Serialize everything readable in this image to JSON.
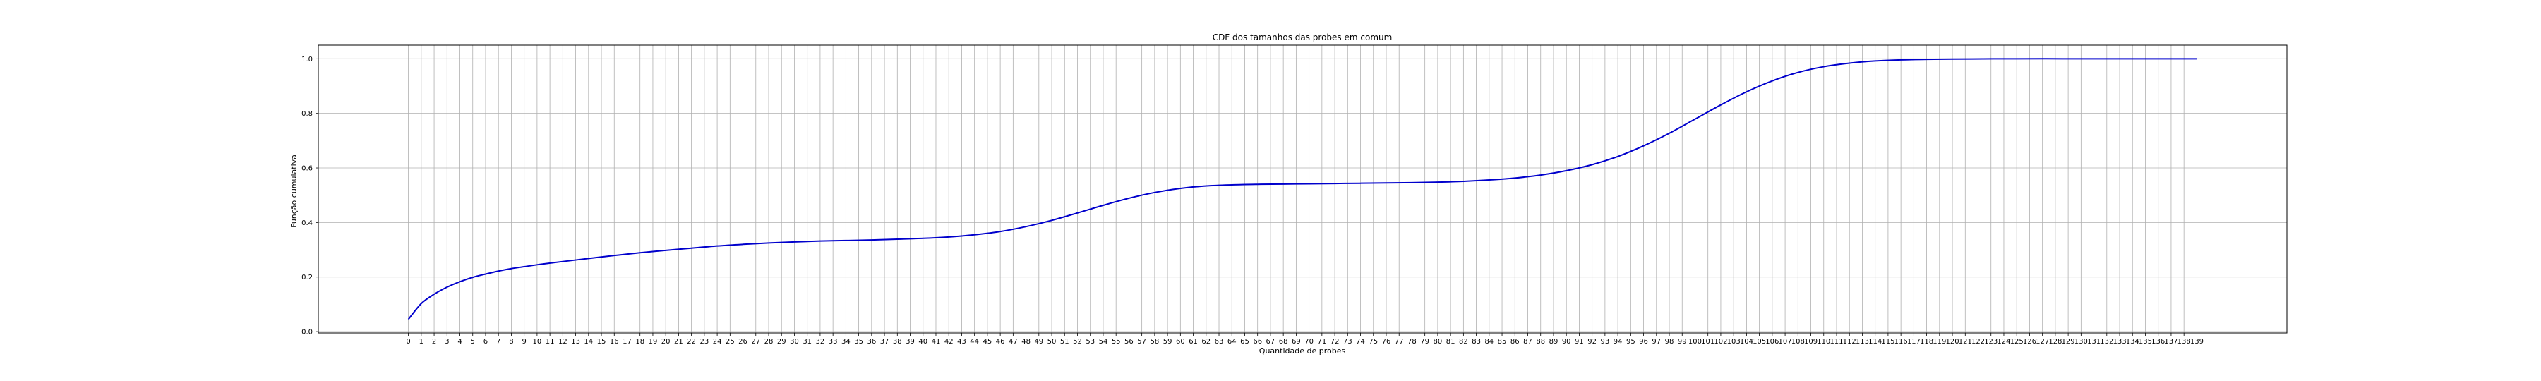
{
  "chart_data": {
    "type": "line",
    "title": "CDF dos tamanhos das probes em comum",
    "xlabel": "Quantidade de probes",
    "ylabel": "Função cumulativa",
    "xlim": [
      -7,
      146
    ],
    "ylim": [
      -0.005,
      1.05
    ],
    "xticks": [
      0,
      1,
      2,
      3,
      4,
      5,
      6,
      7,
      8,
      9,
      10,
      11,
      12,
      13,
      14,
      15,
      16,
      17,
      18,
      19,
      20,
      21,
      22,
      23,
      24,
      25,
      26,
      27,
      28,
      29,
      30,
      31,
      32,
      33,
      34,
      35,
      36,
      37,
      38,
      39,
      40,
      41,
      42,
      43,
      44,
      45,
      46,
      47,
      48,
      49,
      50,
      51,
      52,
      53,
      54,
      55,
      56,
      57,
      58,
      59,
      60,
      61,
      62,
      63,
      64,
      65,
      66,
      67,
      68,
      69,
      70,
      71,
      72,
      73,
      74,
      75,
      76,
      77,
      78,
      79,
      80,
      81,
      82,
      83,
      84,
      85,
      86,
      87,
      88,
      89,
      90,
      91,
      92,
      93,
      94,
      95,
      96,
      97,
      98,
      99,
      100,
      101,
      102,
      103,
      104,
      105,
      106,
      107,
      108,
      109,
      110,
      111,
      112,
      113,
      114,
      115,
      116,
      117,
      118,
      119,
      120,
      121,
      122,
      123,
      124,
      125,
      126,
      127,
      128,
      129,
      130,
      131,
      132,
      133,
      134,
      135,
      136,
      137,
      138,
      139
    ],
    "yticks": [
      0.0,
      0.2,
      0.4,
      0.6,
      0.8,
      1.0
    ],
    "ytick_labels": [
      "0.0",
      "0.2",
      "0.4",
      "0.6",
      "0.8",
      "1.0"
    ],
    "grid": true,
    "color": "#0000cc",
    "series": [
      {
        "x": [
          0,
          1,
          2,
          3,
          4,
          5,
          6,
          7,
          8,
          9,
          10,
          12,
          14,
          16,
          18,
          20,
          22,
          24,
          26,
          28,
          30,
          32,
          34,
          36,
          38,
          40,
          42,
          44,
          46,
          48,
          50,
          52,
          54,
          56,
          58,
          60,
          62,
          64,
          66,
          68,
          70,
          72,
          74,
          76,
          78,
          80,
          82,
          84,
          86,
          88,
          90,
          92,
          94,
          96,
          98,
          100,
          102,
          104,
          106,
          108,
          110,
          112,
          114,
          116,
          118,
          120,
          125,
          130,
          135,
          139
        ],
        "y": [
          0.045,
          0.103,
          0.137,
          0.163,
          0.183,
          0.199,
          0.211,
          0.222,
          0.231,
          0.238,
          0.245,
          0.257,
          0.268,
          0.279,
          0.289,
          0.298,
          0.306,
          0.314,
          0.32,
          0.325,
          0.329,
          0.332,
          0.334,
          0.336,
          0.339,
          0.342,
          0.347,
          0.355,
          0.367,
          0.385,
          0.408,
          0.435,
          0.463,
          0.489,
          0.51,
          0.525,
          0.534,
          0.538,
          0.54,
          0.541,
          0.542,
          0.543,
          0.544,
          0.545,
          0.546,
          0.548,
          0.551,
          0.556,
          0.563,
          0.574,
          0.59,
          0.612,
          0.642,
          0.681,
          0.727,
          0.779,
          0.831,
          0.879,
          0.919,
          0.95,
          0.971,
          0.984,
          0.992,
          0.996,
          0.998,
          0.999,
          1.0,
          1.0,
          1.0,
          1.0
        ]
      }
    ]
  }
}
